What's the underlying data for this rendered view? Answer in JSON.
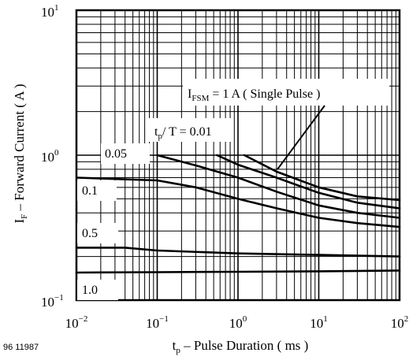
{
  "chart_data": {
    "type": "line",
    "x_scale": "log",
    "y_scale": "log",
    "xlim": [
      0.01,
      100
    ],
    "ylim": [
      0.1,
      10
    ],
    "grid": true,
    "x_ticks": [
      {
        "base": "10",
        "exp": "−2"
      },
      {
        "base": "10",
        "exp": "−1"
      },
      {
        "base": "10",
        "exp": "0"
      },
      {
        "base": "10",
        "exp": "1"
      },
      {
        "base": "10",
        "exp": "2"
      }
    ],
    "y_ticks": [
      {
        "base": "10",
        "exp": "−1"
      },
      {
        "base": "10",
        "exp": "0"
      },
      {
        "base": "10",
        "exp": "1"
      }
    ],
    "xlabel": {
      "main": "t",
      "sub": "p",
      "rest": " – Pulse Duration ( ms )"
    },
    "ylabel": {
      "main": "I",
      "sub": "F",
      "rest": " – Forward Current ( A )"
    },
    "figure_code": "96 11987",
    "labels": {
      "ifsm": {
        "main": "I",
        "sub": "FSM",
        "rest": " = 1 A ( Single Pulse )"
      },
      "duty_title": {
        "main": "t",
        "sub": "p",
        "rest": "/ T = 0.01"
      },
      "d005": "0.05",
      "d01": "0.1",
      "d05": "0.5",
      "d10": "1.0"
    },
    "series": [
      {
        "values": [
          [
            1.2,
            1.0
          ],
          [
            3,
            0.77
          ],
          [
            10,
            0.6
          ],
          [
            30,
            0.52
          ],
          [
            100,
            0.49
          ]
        ]
      },
      {
        "values": [
          [
            0.55,
            1.0
          ],
          [
            1,
            0.86
          ],
          [
            3,
            0.7
          ],
          [
            10,
            0.55
          ],
          [
            30,
            0.47
          ],
          [
            100,
            0.43
          ]
        ]
      },
      {
        "values": [
          [
            0.1,
            1.0
          ],
          [
            0.3,
            0.85
          ],
          [
            1,
            0.7
          ],
          [
            3,
            0.56
          ],
          [
            10,
            0.45
          ],
          [
            30,
            0.4
          ],
          [
            100,
            0.37
          ]
        ]
      },
      {
        "values": [
          [
            0.01,
            0.7
          ],
          [
            0.1,
            0.67
          ],
          [
            0.3,
            0.6
          ],
          [
            1,
            0.5
          ],
          [
            3,
            0.43
          ],
          [
            10,
            0.37
          ],
          [
            30,
            0.34
          ],
          [
            100,
            0.32
          ]
        ]
      },
      {
        "values": [
          [
            0.01,
            0.23
          ],
          [
            0.04,
            0.23
          ],
          [
            0.1,
            0.22
          ],
          [
            1,
            0.21
          ],
          [
            10,
            0.205
          ],
          [
            100,
            0.2
          ]
        ]
      },
      {
        "values": [
          [
            0.01,
            0.155
          ],
          [
            0.1,
            0.156
          ],
          [
            1,
            0.157
          ],
          [
            10,
            0.158
          ],
          [
            100,
            0.16
          ]
        ]
      }
    ]
  }
}
